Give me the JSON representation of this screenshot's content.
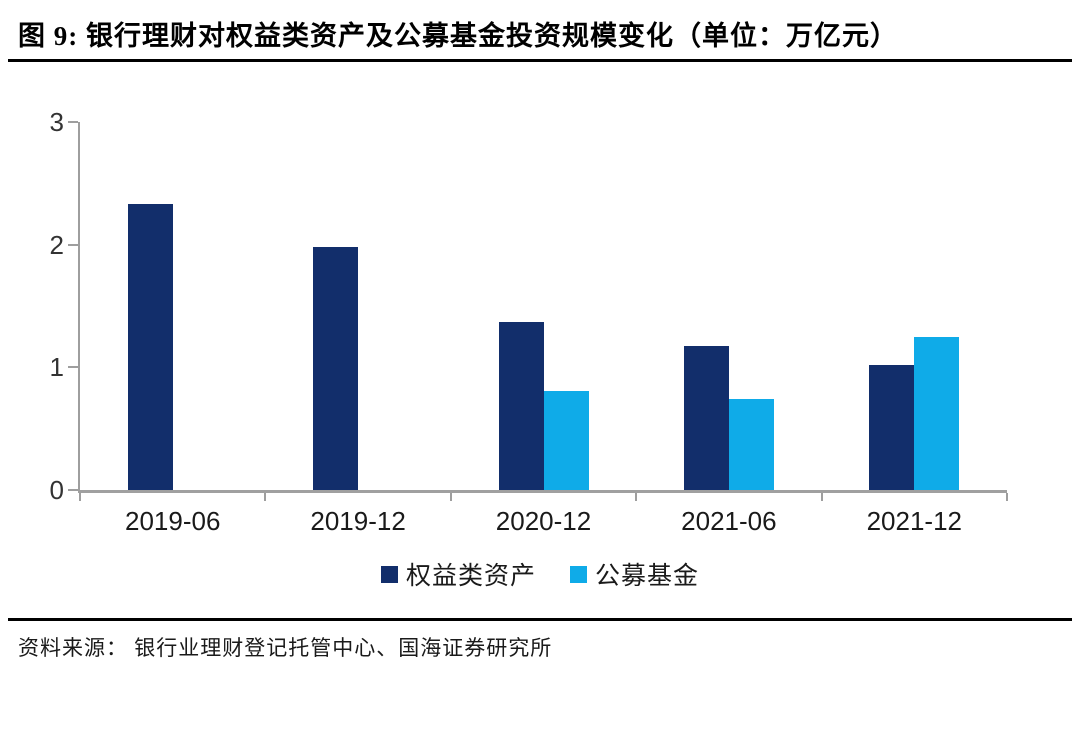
{
  "figure": {
    "title": "图 9:  银行理财对权益类资产及公募基金投资规模变化（单位：万亿元）",
    "source": "资料来源：  银行业理财登记托管中心、国海证券研究所"
  },
  "chart_data": {
    "type": "bar",
    "title": "银行理财对权益类资产及公募基金投资规模变化",
    "unit": "万亿元",
    "categories": [
      "2019-06",
      "2019-12",
      "2020-12",
      "2021-06",
      "2021-12"
    ],
    "series": [
      {
        "name": "权益类资产",
        "color": "#122E6B",
        "values": [
          2.33,
          1.98,
          1.37,
          1.17,
          1.02
        ]
      },
      {
        "name": "公募基金",
        "color": "#0FABE8",
        "values": [
          null,
          null,
          0.81,
          0.74,
          1.25
        ]
      }
    ],
    "ylim": [
      0,
      3
    ],
    "yticks": [
      0,
      1,
      2,
      3
    ],
    "grid": false,
    "legend_position": "bottom",
    "axis_color": "#9e9e9e"
  }
}
